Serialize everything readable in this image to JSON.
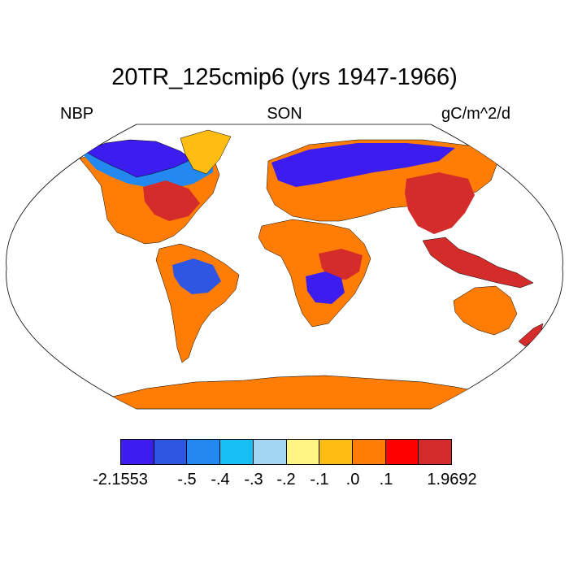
{
  "title": "20TR_125cmip6 (yrs 1947-1966)",
  "left_label": "NBP",
  "center_label": "SON",
  "right_label": "gC/m^2/d",
  "colorbar": {
    "colors": [
      "#3d1cf0",
      "#2f56e2",
      "#2389f0",
      "#18bff5",
      "#a3d6f2",
      "#fff585",
      "#ffbd13",
      "#ff7d05",
      "#ff0000",
      "#d42b2b"
    ],
    "labels": [
      "-2.1553",
      "-.5",
      "-.4",
      "-.3",
      "-.2",
      "-.1",
      ".0",
      ".1",
      "1.9692"
    ]
  },
  "regions": [
    {
      "name": "north-america-arctic",
      "color": "#3d1cf0"
    },
    {
      "name": "north-america-boreal",
      "color": "#2389f0"
    },
    {
      "name": "north-america-temperate",
      "color": "#ff7d05"
    },
    {
      "name": "north-america-east",
      "color": "#d42b2b"
    },
    {
      "name": "greenland",
      "color": "#ffbd13"
    },
    {
      "name": "south-america",
      "color": "#ff7d05"
    },
    {
      "name": "amazon-basin",
      "color": "#2f56e2"
    },
    {
      "name": "europe-russia",
      "color": "#ff7d05"
    },
    {
      "name": "siberia",
      "color": "#3d1cf0"
    },
    {
      "name": "africa",
      "color": "#ff7d05"
    },
    {
      "name": "central-africa",
      "color": "#d42b2b"
    },
    {
      "name": "southern-africa",
      "color": "#3d1cf0"
    },
    {
      "name": "china",
      "color": "#d42b2b"
    },
    {
      "name": "southeast-asia",
      "color": "#d42b2b"
    },
    {
      "name": "australia",
      "color": "#ff7d05"
    },
    {
      "name": "new-zealand",
      "color": "#d42b2b"
    },
    {
      "name": "antarctica",
      "color": "#ff7d05"
    }
  ]
}
